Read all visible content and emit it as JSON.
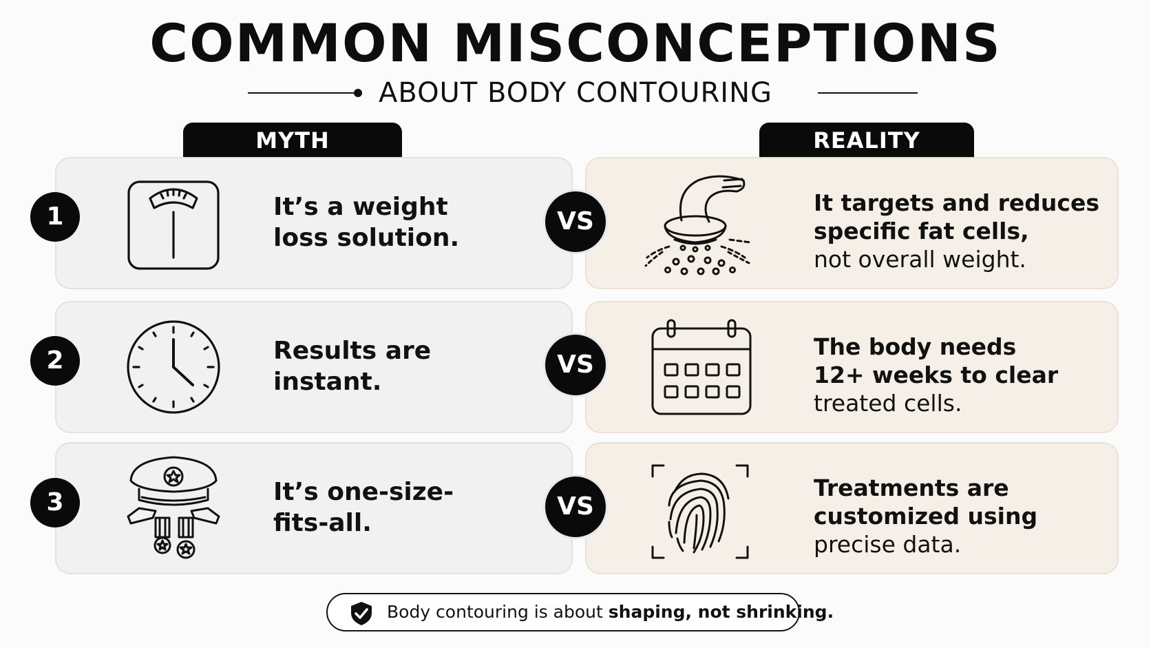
{
  "header": {
    "title": "COMMON MISCONCEPTIONS",
    "subtitle": "ABOUT BODY CONTOURING"
  },
  "columns": {
    "myth_label": "MYTH",
    "reality_label": "REALITY"
  },
  "vs_label": "VS",
  "rows": [
    {
      "number": "1",
      "myth_icon": "bathroom-scale-icon",
      "myth_line1": "It’s a weight",
      "myth_line2": "loss solution.",
      "reality_icon": "contouring-device-icon",
      "reality_line1": "It targets and reduces",
      "reality_line2": "specific fat cells,",
      "reality_line3": "not overall weight."
    },
    {
      "number": "2",
      "myth_icon": "clock-icon",
      "myth_line1": "Results are",
      "myth_line2": "instant.",
      "reality_icon": "calendar-icon",
      "reality_line1": "The body needs",
      "reality_line2": "12+ weeks to clear",
      "reality_line3": "treated cells."
    },
    {
      "number": "3",
      "myth_icon": "military-cap-medals-icon",
      "myth_line1": "It’s one-size-",
      "myth_line2": "fits-all.",
      "reality_icon": "fingerprint-scan-icon",
      "reality_line1": "Treatments are",
      "reality_line2": "customized using",
      "reality_line3": "precise data."
    }
  ],
  "footer": {
    "icon": "shield-check-icon",
    "text_regular": "Body contouring is about ",
    "text_bold": "shaping, not shrinking."
  }
}
